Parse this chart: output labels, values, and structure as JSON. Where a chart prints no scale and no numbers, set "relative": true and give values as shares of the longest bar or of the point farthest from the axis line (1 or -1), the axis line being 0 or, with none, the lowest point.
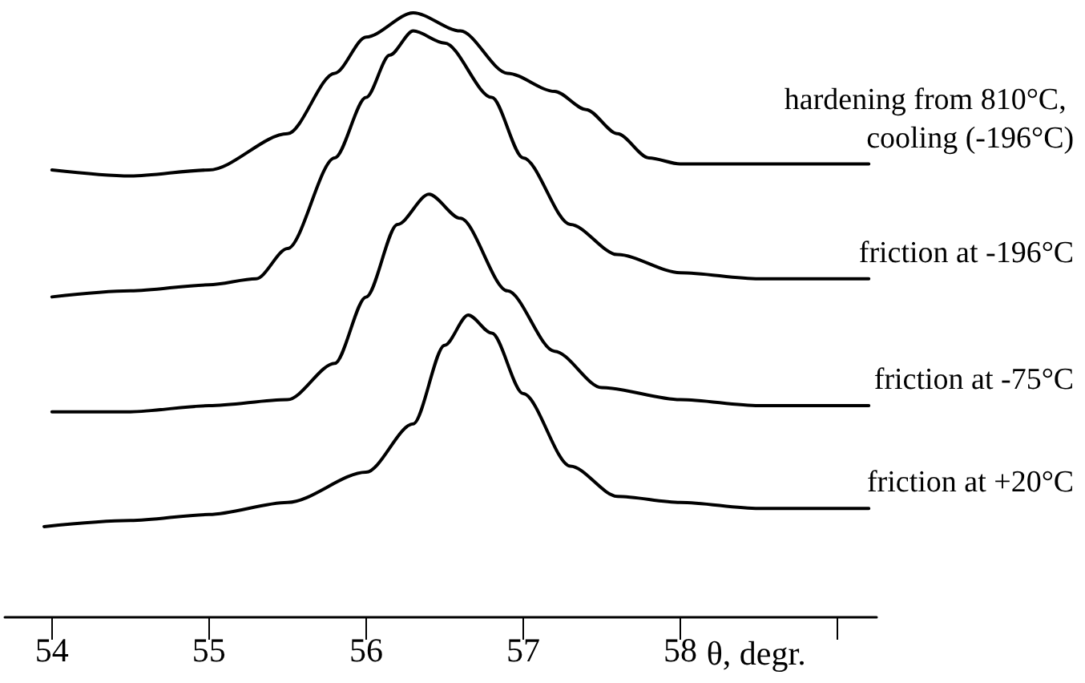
{
  "chart_data": {
    "type": "line",
    "relative": true,
    "xlabel": "θ, degr.",
    "xlim": [
      53.7,
      59.25
    ],
    "xticks": [
      54,
      55,
      56,
      57,
      58,
      {
        "value": 59,
        "label": null
      }
    ],
    "marker": "none",
    "line_style": "solid",
    "series": [
      {
        "name": "hardening from 810°C, cooling (-196°C)",
        "color": "#000000",
        "x": [
          54,
          54.5,
          55,
          55.5,
          55.8,
          56,
          56.3,
          56.6,
          56.9,
          57.2,
          57.4,
          57.6,
          57.8,
          58,
          58.5,
          59.2
        ],
        "values": [
          0.74,
          0.73,
          0.74,
          0.8,
          0.9,
          0.96,
          1.0,
          0.97,
          0.9,
          0.87,
          0.84,
          0.8,
          0.76,
          0.75,
          0.75,
          0.75
        ]
      },
      {
        "name": "friction at -196°C",
        "color": "#000000",
        "x": [
          54,
          54.5,
          55,
          55.3,
          55.5,
          55.8,
          56,
          56.15,
          56.3,
          56.5,
          56.8,
          57,
          57.3,
          57.6,
          58,
          58.5,
          59.2
        ],
        "values": [
          0.53,
          0.54,
          0.55,
          0.56,
          0.61,
          0.76,
          0.86,
          0.93,
          0.97,
          0.95,
          0.86,
          0.76,
          0.65,
          0.6,
          0.57,
          0.56,
          0.56
        ]
      },
      {
        "name": "friction at -75°C",
        "color": "#000000",
        "x": [
          54,
          54.5,
          55,
          55.5,
          55.8,
          56,
          56.2,
          56.4,
          56.6,
          56.9,
          57.2,
          57.5,
          58,
          58.5,
          59.2
        ],
        "values": [
          0.34,
          0.34,
          0.35,
          0.36,
          0.42,
          0.53,
          0.65,
          0.7,
          0.66,
          0.54,
          0.44,
          0.38,
          0.36,
          0.35,
          0.35
        ]
      },
      {
        "name": "friction at +20°C",
        "color": "#000000",
        "x": [
          53.95,
          54.5,
          55,
          55.5,
          56,
          56.3,
          56.5,
          56.65,
          56.8,
          57,
          57.3,
          57.6,
          58,
          58.5,
          59.2
        ],
        "values": [
          0.15,
          0.16,
          0.17,
          0.19,
          0.24,
          0.32,
          0.45,
          0.5,
          0.47,
          0.37,
          0.25,
          0.2,
          0.19,
          0.18,
          0.18
        ]
      }
    ]
  }
}
